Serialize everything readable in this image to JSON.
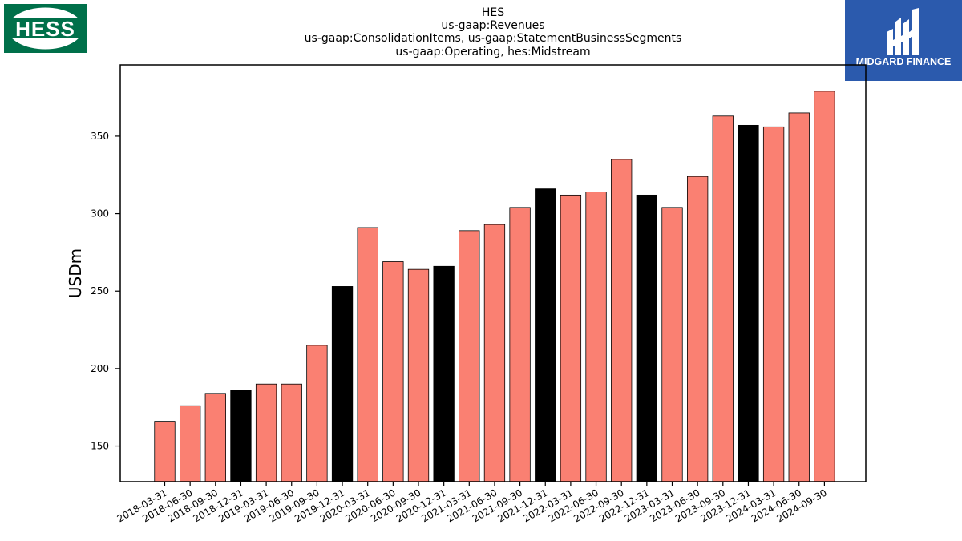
{
  "logos": {
    "left": {
      "text": "HESS",
      "color": "#00704a"
    },
    "right": {
      "text": "MIDGARD FINANCE",
      "color": "#2b5aad"
    }
  },
  "chart_data": {
    "type": "bar",
    "title_lines": [
      "HES",
      "us-gaap:Revenues",
      "us-gaap:ConsolidationItems, us-gaap:StatementBusinessSegments",
      "us-gaap:Operating, hes:Midstream"
    ],
    "xlabel": "",
    "ylabel": "USDm",
    "ylim": [
      127,
      396
    ],
    "yticks": [
      150,
      200,
      250,
      300,
      350
    ],
    "grid": false,
    "categories": [
      "2018-03-31",
      "2018-06-30",
      "2018-09-30",
      "2018-12-31",
      "2019-03-31",
      "2019-06-30",
      "2019-09-30",
      "2019-12-31",
      "2020-03-31",
      "2020-06-30",
      "2020-09-30",
      "2020-12-31",
      "2021-03-31",
      "2021-06-30",
      "2021-09-30",
      "2021-12-31",
      "2022-03-31",
      "2022-06-30",
      "2022-09-30",
      "2022-12-31",
      "2023-03-31",
      "2023-06-30",
      "2023-09-30",
      "2023-12-31",
      "2024-03-31",
      "2024-06-30",
      "2024-09-30"
    ],
    "values": [
      166,
      176,
      184,
      186,
      190,
      190,
      215,
      253,
      291,
      269,
      264,
      266,
      289,
      293,
      304,
      316,
      312,
      314,
      335,
      312,
      304,
      324,
      363,
      357,
      356,
      365,
      379
    ],
    "colors": {
      "quarter": "#fa8072",
      "year_end": "#000000",
      "edge": "#000000"
    }
  }
}
